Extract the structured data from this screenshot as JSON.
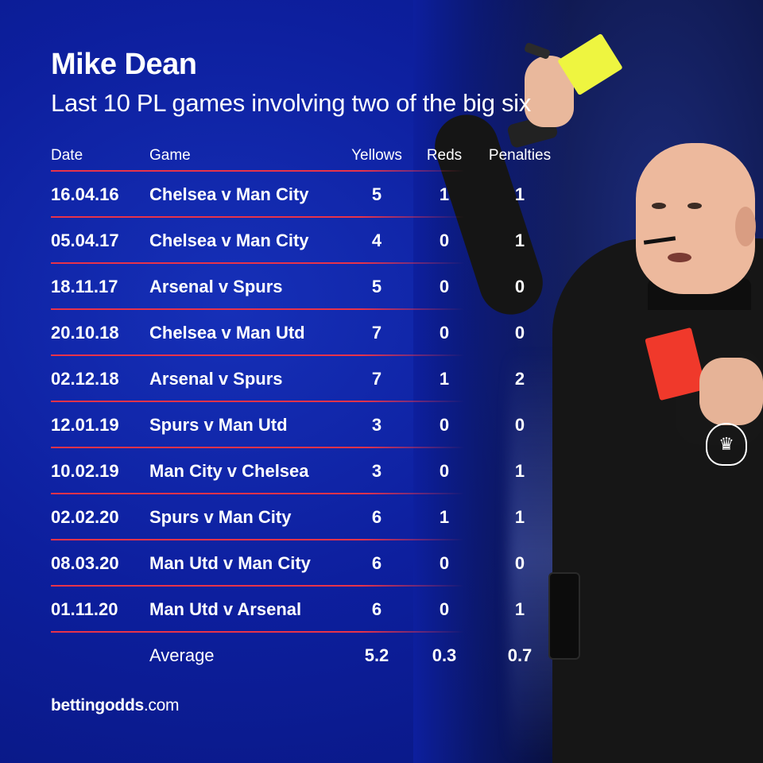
{
  "title": "Mike Dean",
  "subtitle": "Last 10 PL games involving two of the big six",
  "table": {
    "headers": {
      "date": "Date",
      "game": "Game",
      "yellows": "Yellows",
      "reds": "Reds",
      "penalties": "Penalties"
    },
    "rows": [
      {
        "date": "16.04.16",
        "game": "Chelsea v Man City",
        "yellows": "5",
        "reds": "1",
        "penalties": "1"
      },
      {
        "date": "05.04.17",
        "game": "Chelsea v Man City",
        "yellows": "4",
        "reds": "0",
        "penalties": "1"
      },
      {
        "date": "18.11.17",
        "game": "Arsenal v Spurs",
        "yellows": "5",
        "reds": "0",
        "penalties": "0"
      },
      {
        "date": "20.10.18",
        "game": "Chelsea v Man Utd",
        "yellows": "7",
        "reds": "0",
        "penalties": "0"
      },
      {
        "date": "02.12.18",
        "game": "Arsenal v Spurs",
        "yellows": "7",
        "reds": "1",
        "penalties": "2"
      },
      {
        "date": "12.01.19",
        "game": "Spurs v Man Utd",
        "yellows": "3",
        "reds": "0",
        "penalties": "0"
      },
      {
        "date": "10.02.19",
        "game": "Man City v Chelsea",
        "yellows": "3",
        "reds": "0",
        "penalties": "1"
      },
      {
        "date": "02.02.20",
        "game": "Spurs v Man City",
        "yellows": "6",
        "reds": "1",
        "penalties": "1"
      },
      {
        "date": "08.03.20",
        "game": "Man Utd v Man City",
        "yellows": "6",
        "reds": "0",
        "penalties": "0"
      },
      {
        "date": "01.11.20",
        "game": "Man Utd v Arsenal",
        "yellows": "6",
        "reds": "0",
        "penalties": "1"
      }
    ],
    "average": {
      "label": "Average",
      "yellows": "5.2",
      "reds": "0.3",
      "penalties": "0.7"
    }
  },
  "brand": {
    "name_bold": "bettingodds",
    "name_suffix": ".com"
  },
  "colors": {
    "background": "#0d1f9e",
    "separator": "#e8334a",
    "text": "#ffffff",
    "yellow_card": "#eef540",
    "red_card": "#f0392b"
  },
  "photo": {
    "subject": "referee-holding-yellow-and-red-cards"
  }
}
